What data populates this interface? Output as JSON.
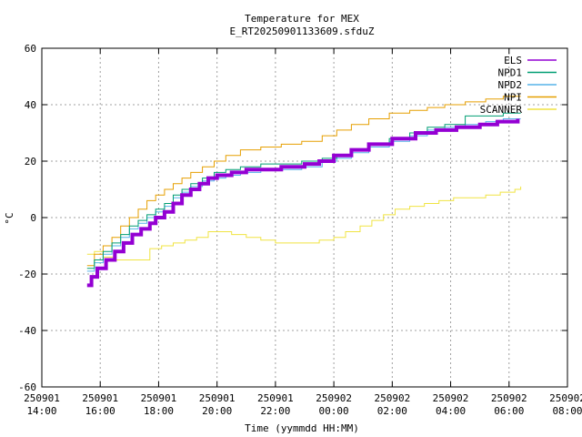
{
  "chart_data": {
    "type": "line",
    "title": "Temperature for MEX",
    "subtitle": "E_RT20250901133609.sfduZ",
    "xlabel": "Time (yymmdd HH:MM)",
    "ylabel": "°C",
    "ylim": [
      -60,
      60
    ],
    "yticks": [
      -60,
      -40,
      -20,
      0,
      20,
      40,
      60
    ],
    "xlim": [
      14,
      32
    ],
    "xticks": [
      {
        "value": 14,
        "date": "250901",
        "time": "14:00"
      },
      {
        "value": 16,
        "date": "250901",
        "time": "16:00"
      },
      {
        "value": 18,
        "date": "250901",
        "time": "18:00"
      },
      {
        "value": 20,
        "date": "250901",
        "time": "20:00"
      },
      {
        "value": 22,
        "date": "250901",
        "time": "22:00"
      },
      {
        "value": 24,
        "date": "250902",
        "time": "00:00"
      },
      {
        "value": 26,
        "date": "250902",
        "time": "02:00"
      },
      {
        "value": 28,
        "date": "250902",
        "time": "04:00"
      },
      {
        "value": 30,
        "date": "250902",
        "time": "06:00"
      },
      {
        "value": 32,
        "date": "250902",
        "time": "08:00"
      }
    ],
    "grid": true,
    "legend_position": "top-right",
    "series": [
      {
        "name": "ELS",
        "color": "#9400d3",
        "width": 4,
        "points": [
          [
            15.55,
            -24
          ],
          [
            15.7,
            -21
          ],
          [
            15.9,
            -18
          ],
          [
            16.2,
            -15
          ],
          [
            16.5,
            -12
          ],
          [
            16.8,
            -9
          ],
          [
            17.1,
            -6
          ],
          [
            17.4,
            -4
          ],
          [
            17.7,
            -2
          ],
          [
            17.9,
            0
          ],
          [
            18.2,
            2
          ],
          [
            18.5,
            5
          ],
          [
            18.8,
            8
          ],
          [
            19.1,
            10
          ],
          [
            19.4,
            12
          ],
          [
            19.7,
            14
          ],
          [
            20.0,
            15
          ],
          [
            20.5,
            16
          ],
          [
            21.0,
            17
          ],
          [
            21.6,
            17
          ],
          [
            22.2,
            18
          ],
          [
            23.0,
            19
          ],
          [
            23.5,
            20
          ],
          [
            24.0,
            22
          ],
          [
            24.6,
            24
          ],
          [
            25.2,
            26
          ],
          [
            26.0,
            28
          ],
          [
            26.8,
            30
          ],
          [
            27.5,
            31
          ],
          [
            28.2,
            32
          ],
          [
            29.0,
            33
          ],
          [
            29.6,
            34
          ],
          [
            30.3,
            35
          ]
        ]
      },
      {
        "name": "NPD1",
        "color": "#009e73",
        "width": 1,
        "points": [
          [
            15.55,
            -18
          ],
          [
            15.8,
            -15
          ],
          [
            16.1,
            -12
          ],
          [
            16.4,
            -9
          ],
          [
            16.7,
            -6
          ],
          [
            17.0,
            -3
          ],
          [
            17.3,
            -1
          ],
          [
            17.6,
            1
          ],
          [
            17.9,
            3
          ],
          [
            18.2,
            5
          ],
          [
            18.5,
            8
          ],
          [
            18.8,
            10
          ],
          [
            19.1,
            12
          ],
          [
            19.5,
            14
          ],
          [
            19.9,
            16
          ],
          [
            20.3,
            17
          ],
          [
            20.8,
            18
          ],
          [
            21.5,
            19
          ],
          [
            22.2,
            19
          ],
          [
            22.9,
            20
          ],
          [
            23.6,
            21
          ],
          [
            24.1,
            22
          ],
          [
            24.6,
            24
          ],
          [
            25.2,
            26
          ],
          [
            25.9,
            28
          ],
          [
            26.6,
            30
          ],
          [
            27.2,
            32
          ],
          [
            27.8,
            33
          ],
          [
            28.5,
            36
          ],
          [
            29.2,
            36
          ],
          [
            29.8,
            37
          ],
          [
            30.4,
            37
          ]
        ]
      },
      {
        "name": "NPD2",
        "color": "#56b4e9",
        "width": 1,
        "points": [
          [
            15.55,
            -19
          ],
          [
            15.8,
            -16
          ],
          [
            16.1,
            -13
          ],
          [
            16.4,
            -10
          ],
          [
            16.7,
            -7
          ],
          [
            17.0,
            -4
          ],
          [
            17.3,
            -2
          ],
          [
            17.6,
            0
          ],
          [
            17.9,
            2
          ],
          [
            18.2,
            4
          ],
          [
            18.5,
            7
          ],
          [
            18.8,
            9
          ],
          [
            19.1,
            11
          ],
          [
            19.5,
            13
          ],
          [
            19.9,
            14
          ],
          [
            20.3,
            15
          ],
          [
            20.8,
            16
          ],
          [
            21.5,
            17
          ],
          [
            22.3,
            17
          ],
          [
            22.9,
            18
          ],
          [
            23.6,
            20
          ],
          [
            24.1,
            21
          ],
          [
            24.6,
            23
          ],
          [
            25.2,
            25
          ],
          [
            25.9,
            27
          ],
          [
            26.6,
            29
          ],
          [
            27.2,
            31
          ],
          [
            27.8,
            32
          ],
          [
            28.5,
            33
          ],
          [
            29.2,
            34
          ],
          [
            29.8,
            35
          ],
          [
            30.4,
            35
          ]
        ]
      },
      {
        "name": "NPI",
        "color": "#e69f00",
        "width": 1,
        "points": [
          [
            15.55,
            -17
          ],
          [
            15.8,
            -13
          ],
          [
            16.1,
            -10
          ],
          [
            16.4,
            -7
          ],
          [
            16.7,
            -3
          ],
          [
            17.0,
            0
          ],
          [
            17.3,
            3
          ],
          [
            17.6,
            6
          ],
          [
            17.9,
            8
          ],
          [
            18.2,
            10
          ],
          [
            18.5,
            12
          ],
          [
            18.8,
            14
          ],
          [
            19.1,
            16
          ],
          [
            19.5,
            18
          ],
          [
            19.9,
            20
          ],
          [
            20.3,
            22
          ],
          [
            20.8,
            24
          ],
          [
            21.5,
            25
          ],
          [
            22.2,
            26
          ],
          [
            22.9,
            27
          ],
          [
            23.6,
            29
          ],
          [
            24.1,
            31
          ],
          [
            24.6,
            33
          ],
          [
            25.2,
            35
          ],
          [
            25.9,
            37
          ],
          [
            26.6,
            38
          ],
          [
            27.2,
            39
          ],
          [
            27.8,
            40
          ],
          [
            28.5,
            41
          ],
          [
            29.2,
            42
          ],
          [
            29.8,
            43
          ],
          [
            30.4,
            43
          ]
        ]
      },
      {
        "name": "SCANNER",
        "color": "#f0e442",
        "width": 1,
        "points": [
          [
            15.55,
            -13
          ],
          [
            15.8,
            -12
          ],
          [
            16.1,
            -14
          ],
          [
            16.5,
            -15
          ],
          [
            16.9,
            -15
          ],
          [
            17.3,
            -15
          ],
          [
            17.7,
            -11
          ],
          [
            18.1,
            -10
          ],
          [
            18.5,
            -9
          ],
          [
            18.9,
            -8
          ],
          [
            19.3,
            -7
          ],
          [
            19.7,
            -5
          ],
          [
            20.0,
            -5
          ],
          [
            20.5,
            -6
          ],
          [
            21.0,
            -7
          ],
          [
            21.5,
            -8
          ],
          [
            22.0,
            -9
          ],
          [
            22.5,
            -9
          ],
          [
            23.0,
            -9
          ],
          [
            23.5,
            -8
          ],
          [
            24.0,
            -7
          ],
          [
            24.4,
            -5
          ],
          [
            24.9,
            -3
          ],
          [
            25.3,
            -1
          ],
          [
            25.7,
            1
          ],
          [
            26.1,
            3
          ],
          [
            26.6,
            4
          ],
          [
            27.1,
            5
          ],
          [
            27.6,
            6
          ],
          [
            28.1,
            7
          ],
          [
            28.7,
            7
          ],
          [
            29.2,
            8
          ],
          [
            29.7,
            9
          ],
          [
            30.2,
            10
          ],
          [
            30.4,
            11
          ]
        ]
      }
    ]
  }
}
